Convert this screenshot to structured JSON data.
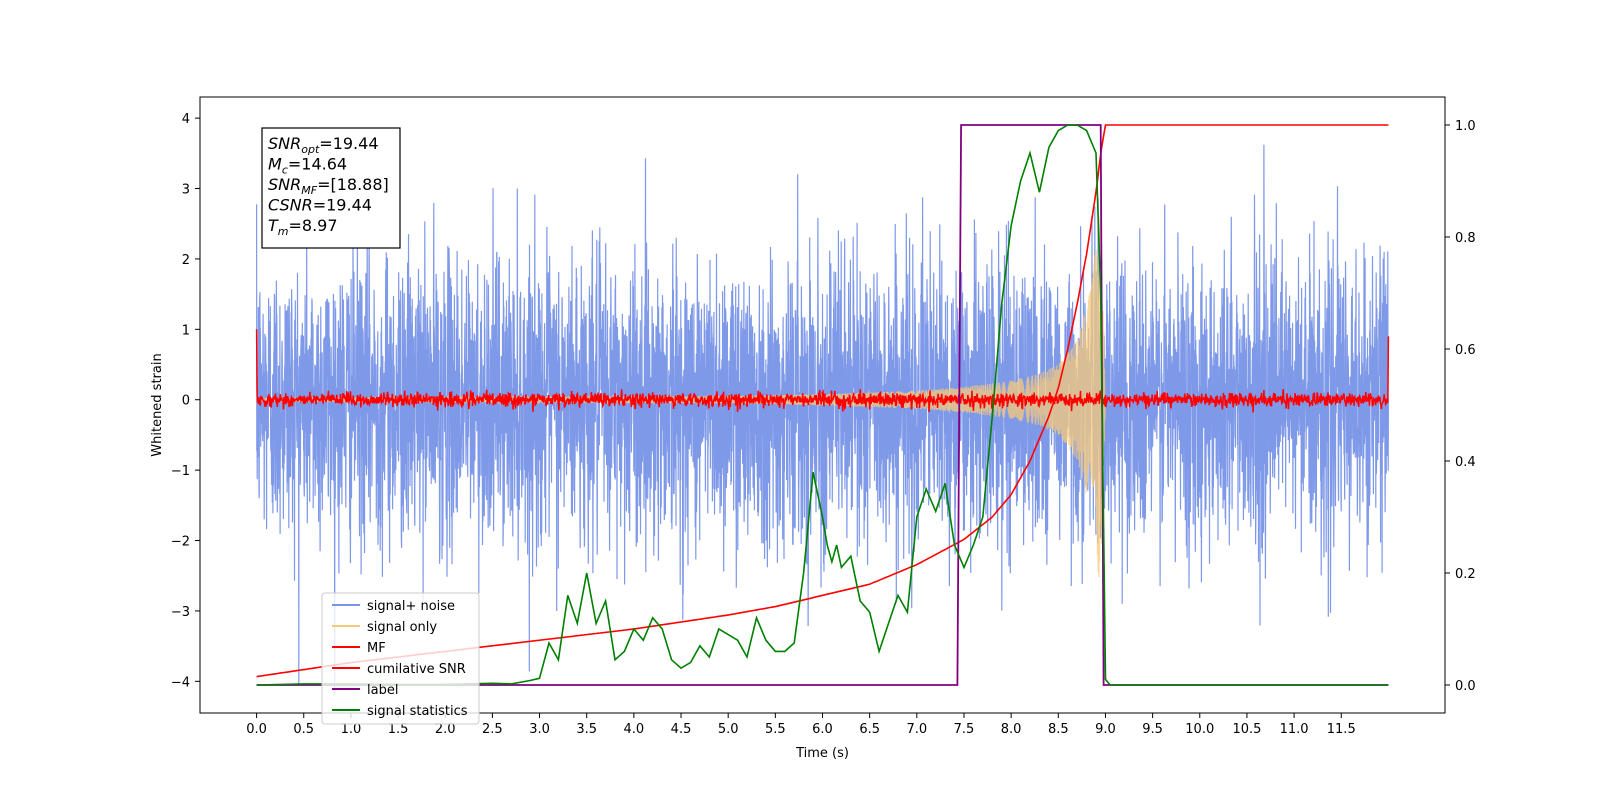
{
  "chart_data": {
    "type": "line",
    "xlabel": "Time (s)",
    "ylabel": "Whitened strain",
    "xlim": [
      -0.6,
      12.6
    ],
    "ylim_left": [
      -4.45,
      4.3
    ],
    "ylim_right": [
      -0.05,
      1.05
    ],
    "x_ticks": [
      0.0,
      0.5,
      1.0,
      1.5,
      2.0,
      2.5,
      3.0,
      3.5,
      4.0,
      4.5,
      5.0,
      5.5,
      6.0,
      6.5,
      7.0,
      7.5,
      8.0,
      8.5,
      9.0,
      9.5,
      10.0,
      10.5,
      11.0,
      11.5
    ],
    "x_tick_labels": [
      "0.0",
      "0.5",
      "1.0",
      "1.5",
      "2.0",
      "2.5",
      "3.0",
      "3.5",
      "4.0",
      "4.5",
      "5.0",
      "5.5",
      "6.0",
      "6.5",
      "7.0",
      "7.5",
      "8.0",
      "8.5",
      "9.0",
      "9.5",
      "10.0",
      "10.5",
      "11.0",
      "11.5"
    ],
    "y_ticks_left": [
      4,
      3,
      2,
      1,
      0,
      -1,
      -2,
      -3,
      -4
    ],
    "y_tick_labels_left": [
      "4",
      "3",
      "2",
      "1",
      "0",
      "−1",
      "−2",
      "−3",
      "−4"
    ],
    "y_ticks_right": [
      1.0,
      0.8,
      0.6,
      0.4,
      0.2,
      0.0
    ],
    "y_tick_labels_right": [
      "1.0",
      "0.8",
      "0.6",
      "0.4",
      "0.2",
      "0.0"
    ],
    "grid": false,
    "legend_position": "lower-left",
    "annotation_lines": [
      {
        "base": "SNR",
        "sub": "opt",
        "value": "=19.44"
      },
      {
        "base": "M",
        "sub": "c",
        "value": "=14.64"
      },
      {
        "base": "SNR",
        "sub": "MF",
        "value": "=[18.88]"
      },
      {
        "base": "CSNR",
        "sub": "",
        "value": "=19.44"
      },
      {
        "base": "T",
        "sub": "m",
        "value": "=8.97"
      }
    ],
    "series": [
      {
        "name": "signal+ noise",
        "color": "#7893e8",
        "axis": "left",
        "description_values": {
          "t_start": 0.0,
          "t_end": 12.0,
          "typical_amplitude": 1.0,
          "peak_envelope": [
            -4.2,
            3.9
          ]
        }
      },
      {
        "name": "signal only",
        "color": "#f5c97a",
        "axis": "left",
        "envelope": {
          "t": [
            0.0,
            5.0,
            6.0,
            7.0,
            7.5,
            8.0,
            8.3,
            8.5,
            8.7,
            8.85,
            8.95,
            9.0
          ],
          "amp": [
            0.02,
            0.05,
            0.08,
            0.13,
            0.18,
            0.27,
            0.37,
            0.5,
            0.85,
            1.6,
            2.8,
            0.0
          ]
        }
      },
      {
        "name": "MF",
        "color": "#ff0000",
        "axis": "left",
        "values": {
          "t_start": 0.0,
          "t_end": 12.0,
          "start_value": 1.0,
          "baseline": 0.0,
          "noise": 0.05,
          "end_value": 0.9
        }
      },
      {
        "name": "cumilative SNR",
        "color": "#ff0000",
        "axis": "right",
        "x": [
          0.0,
          1.0,
          2.0,
          3.0,
          4.0,
          5.0,
          5.5,
          6.0,
          6.5,
          7.0,
          7.5,
          7.8,
          8.0,
          8.2,
          8.4,
          8.5,
          8.6,
          8.7,
          8.8,
          8.9,
          8.95,
          9.0,
          12.0
        ],
        "y": [
          0.015,
          0.04,
          0.06,
          0.08,
          0.1,
          0.125,
          0.14,
          0.16,
          0.18,
          0.215,
          0.26,
          0.3,
          0.34,
          0.4,
          0.48,
          0.53,
          0.6,
          0.68,
          0.77,
          0.88,
          0.95,
          1.0,
          1.0
        ]
      },
      {
        "name": "label",
        "color": "#800080",
        "axis": "right",
        "x": [
          0.0,
          7.43,
          7.47,
          8.95,
          8.98,
          12.0
        ],
        "y": [
          0.0,
          0.0,
          1.0,
          1.0,
          0.0,
          0.0
        ]
      },
      {
        "name": "signal statistics",
        "color": "#008000",
        "axis": "right",
        "x": [
          0.0,
          0.5,
          1.0,
          1.5,
          2.0,
          2.5,
          2.7,
          2.9,
          3.0,
          3.1,
          3.2,
          3.3,
          3.4,
          3.5,
          3.6,
          3.7,
          3.8,
          3.9,
          4.0,
          4.1,
          4.2,
          4.3,
          4.4,
          4.5,
          4.6,
          4.7,
          4.8,
          4.9,
          5.0,
          5.1,
          5.2,
          5.3,
          5.4,
          5.5,
          5.6,
          5.7,
          5.8,
          5.9,
          6.0,
          6.05,
          6.1,
          6.15,
          6.2,
          6.3,
          6.4,
          6.5,
          6.6,
          6.7,
          6.8,
          6.9,
          7.0,
          7.1,
          7.2,
          7.3,
          7.4,
          7.5,
          7.6,
          7.7,
          7.8,
          7.9,
          8.0,
          8.1,
          8.2,
          8.3,
          8.4,
          8.5,
          8.6,
          8.7,
          8.8,
          8.9,
          8.95,
          9.0,
          9.05,
          12.0
        ],
        "y": [
          0.0,
          0.002,
          0.002,
          0.001,
          0.001,
          0.003,
          0.002,
          0.008,
          0.012,
          0.075,
          0.045,
          0.16,
          0.11,
          0.2,
          0.11,
          0.15,
          0.045,
          0.06,
          0.1,
          0.08,
          0.12,
          0.1,
          0.045,
          0.03,
          0.04,
          0.07,
          0.05,
          0.1,
          0.09,
          0.08,
          0.05,
          0.12,
          0.08,
          0.06,
          0.06,
          0.075,
          0.2,
          0.38,
          0.3,
          0.25,
          0.22,
          0.25,
          0.21,
          0.23,
          0.15,
          0.13,
          0.06,
          0.11,
          0.16,
          0.13,
          0.3,
          0.35,
          0.31,
          0.36,
          0.25,
          0.21,
          0.25,
          0.3,
          0.48,
          0.68,
          0.82,
          0.9,
          0.95,
          0.88,
          0.96,
          0.99,
          1.0,
          1.0,
          0.99,
          0.95,
          0.7,
          0.01,
          0.0,
          0.0
        ]
      }
    ]
  }
}
